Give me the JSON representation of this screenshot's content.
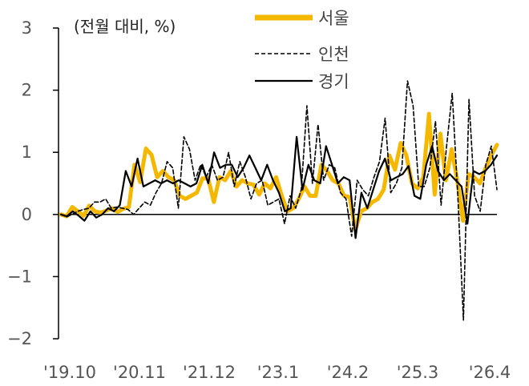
{
  "chart_data": {
    "type": "line",
    "unit_label": "(전월 대비, %)",
    "y_ticks": [
      3,
      2,
      1,
      0,
      -1,
      -2
    ],
    "ylim": [
      -2,
      3
    ],
    "x_tick_labels": [
      "'19.10",
      "'20.11",
      "'21.12",
      "'23.1",
      "'24.2",
      "'25.3",
      "'26.4"
    ],
    "x_range": [
      "2019-10",
      "2026-04"
    ],
    "legend_position": "top-center",
    "series": [
      {
        "name": "서울",
        "color": "#F5B800",
        "style": "solid-thick",
        "values": [
          0.0,
          -0.03,
          0.12,
          0.05,
          -0.02,
          0.14,
          0.05,
          0.03,
          0.06,
          0.1,
          0.04,
          0.09,
          0.12,
          0.8,
          0.52,
          1.06,
          0.96,
          0.6,
          0.7,
          0.6,
          0.55,
          0.3,
          0.25,
          0.3,
          0.35,
          0.58,
          0.58,
          0.2,
          0.6,
          0.55,
          0.7,
          0.45,
          0.55,
          0.5,
          0.48,
          0.32,
          0.5,
          0.42,
          0.6,
          0.3,
          0.05,
          0.1,
          0.25,
          0.45,
          0.3,
          0.3,
          0.8,
          0.7,
          0.55,
          0.5,
          0.3,
          0.28,
          -0.25,
          0.05,
          0.1,
          0.2,
          0.25,
          0.4,
          0.95,
          0.72,
          1.15,
          0.95,
          0.5,
          0.42,
          0.6,
          1.62,
          0.32,
          1.3,
          0.55,
          1.05,
          0.55,
          -0.1,
          0.65,
          0.6,
          0.5,
          0.75,
          0.95,
          1.12
        ]
      },
      {
        "name": "인천",
        "color": "#000000",
        "style": "dashed",
        "values": [
          0.0,
          -0.04,
          0.0,
          0.05,
          0.08,
          0.1,
          0.2,
          0.2,
          0.25,
          0.1,
          0.12,
          0.1,
          0.08,
          0.0,
          0.1,
          0.2,
          0.15,
          0.35,
          0.5,
          0.85,
          0.75,
          0.1,
          1.25,
          1.05,
          0.55,
          0.8,
          0.6,
          0.8,
          0.55,
          0.6,
          1.0,
          0.45,
          0.85,
          0.6,
          0.25,
          0.5,
          0.55,
          0.15,
          0.2,
          0.25,
          -0.15,
          0.3,
          0.1,
          0.4,
          1.75,
          0.5,
          1.45,
          0.55,
          0.8,
          0.75,
          0.35,
          0.25,
          -0.35,
          0.55,
          0.4,
          0.3,
          0.6,
          0.85,
          1.55,
          0.35,
          0.5,
          0.75,
          2.15,
          1.75,
          0.45,
          0.45,
          0.75,
          1.5,
          0.15,
          1.1,
          1.95,
          0.3,
          -1.7,
          1.85,
          0.3,
          0.05,
          0.8,
          1.1,
          0.4
        ]
      },
      {
        "name": "경기",
        "color": "#000000",
        "style": "solid-thin",
        "values": [
          0.0,
          -0.03,
          0.05,
          -0.02,
          -0.1,
          0.05,
          -0.05,
          0.0,
          0.1,
          0.05,
          0.15,
          0.7,
          0.45,
          0.9,
          0.45,
          0.5,
          0.55,
          0.5,
          0.55,
          0.5,
          0.55,
          0.5,
          0.45,
          0.5,
          0.8,
          0.5,
          1.0,
          0.75,
          0.8,
          0.8,
          0.6,
          0.75,
          0.95,
          0.75,
          0.55,
          0.8,
          0.55,
          0.35,
          0.05,
          0.1,
          1.25,
          0.4,
          0.8,
          0.55,
          0.5,
          1.1,
          0.8,
          0.5,
          0.6,
          0.55,
          -0.38,
          0.35,
          0.1,
          0.4,
          0.7,
          0.9,
          0.55,
          0.6,
          0.65,
          0.78,
          0.3,
          0.25,
          0.8,
          1.1,
          0.7,
          0.55,
          0.65,
          0.55,
          0.45,
          -0.15,
          0.7,
          0.65,
          0.7,
          0.8,
          0.95
        ]
      }
    ]
  }
}
